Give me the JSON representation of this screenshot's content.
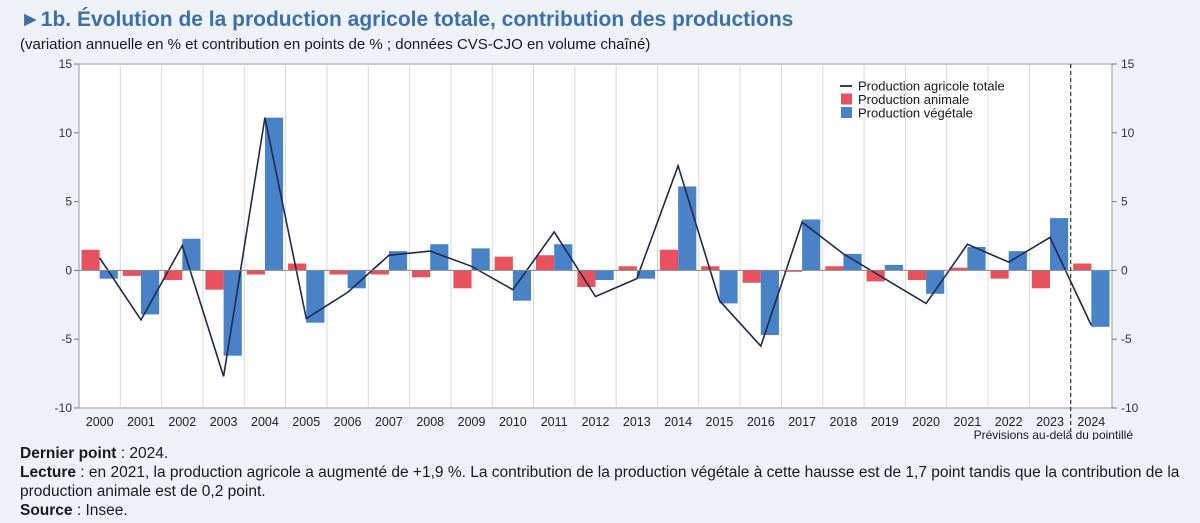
{
  "header": {
    "arrow": "►",
    "title": "1b. Évolution de la production agricole totale, contribution des productions",
    "subtitle": "(variation annuelle en % et contribution en points de % ; données CVS-CJO en volume chaîné)"
  },
  "chart_data": {
    "type": "bar",
    "categories": [
      "2000",
      "2001",
      "2002",
      "2003",
      "2004",
      "2005",
      "2006",
      "2007",
      "2008",
      "2009",
      "2010",
      "2011",
      "2012",
      "2013",
      "2014",
      "2015",
      "2016",
      "2017",
      "2018",
      "2019",
      "2020",
      "2021",
      "2022",
      "2023",
      "2024"
    ],
    "series": [
      {
        "name": "Production animale",
        "kind": "bar",
        "color": "#e8525e",
        "values": [
          1.5,
          -0.4,
          -0.7,
          -1.4,
          -0.3,
          0.5,
          -0.3,
          -0.3,
          -0.5,
          -1.3,
          1.0,
          1.1,
          -1.2,
          0.3,
          1.5,
          0.3,
          -0.9,
          -0.1,
          0.3,
          -0.8,
          -0.7,
          0.2,
          -0.6,
          -1.3,
          0.5
        ]
      },
      {
        "name": "Production végétale",
        "kind": "bar",
        "color": "#4a82c8",
        "values": [
          -0.6,
          -3.2,
          2.3,
          -6.2,
          11.1,
          -3.8,
          -1.3,
          1.4,
          1.9,
          1.6,
          -2.2,
          1.9,
          -0.7,
          -0.6,
          6.1,
          -2.4,
          -4.7,
          3.7,
          1.2,
          0.4,
          -1.7,
          1.7,
          1.4,
          3.8,
          -4.1
        ]
      },
      {
        "name": "Production agricole totale",
        "kind": "line",
        "color": "#1f2a4e",
        "values": [
          0.9,
          -3.6,
          1.8,
          -7.7,
          11.1,
          -3.5,
          -1.6,
          1.1,
          1.4,
          0.3,
          -1.4,
          2.8,
          -1.9,
          -0.6,
          7.6,
          -2.2,
          -5.5,
          3.5,
          1.2,
          -0.6,
          -2.4,
          1.9,
          0.6,
          2.4,
          -4.0
        ]
      }
    ],
    "yticks": [
      15,
      10,
      5,
      0,
      -5,
      -10
    ],
    "ytick_labels": [
      "15",
      "10",
      "5",
      "0",
      "-5",
      "-10"
    ],
    "ylim": [
      -10,
      15
    ],
    "legend": [
      "Production agricole totale",
      "Production animale",
      "Production végétale"
    ],
    "legend_position": "top-right",
    "forecast_label": "Prévisions au-delà du pointillé",
    "forecast_after": "2023"
  },
  "notes": {
    "dernier_label": "Dernier point",
    "dernier_text": " : 2024.",
    "lecture_label": "Lecture",
    "lecture_text": " : en 2021, la production agricole a augmenté de +1,9 %. La contribution de la production végétale à cette hausse est de 1,7 point tandis que la contribution de la production animale est de 0,2 point.",
    "source_label": "Source",
    "source_text": " : Insee."
  }
}
